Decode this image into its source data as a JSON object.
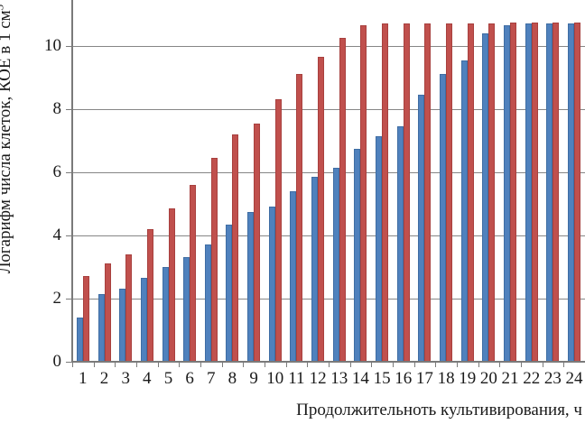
{
  "figure": {
    "ylabel_main": "Логарифм числа клеток, КОЕ в 1 см",
    "ylabel_sup": "3",
    "xlabel": "Продолжительноть культивирования, ч"
  },
  "chart_data": {
    "type": "bar",
    "title": "",
    "xlabel": "Продолжительноть культивирования, ч",
    "ylabel": "Логарифм числа клеток, КОЕ в 1 см³",
    "categories": [
      "1",
      "2",
      "3",
      "4",
      "5",
      "6",
      "7",
      "8",
      "9",
      "10",
      "11",
      "12",
      "13",
      "14",
      "15",
      "16",
      "17",
      "18",
      "19",
      "20",
      "21",
      "22",
      "23",
      "24"
    ],
    "series": [
      {
        "name": "series-blue",
        "color": "#4F81BD",
        "values": [
          1.4,
          2.15,
          2.3,
          2.65,
          3.0,
          3.3,
          3.7,
          4.35,
          4.75,
          4.9,
          5.4,
          5.85,
          6.15,
          6.75,
          7.15,
          7.45,
          8.45,
          9.1,
          9.55,
          10.4,
          10.65,
          10.7,
          10.7,
          10.7
        ]
      },
      {
        "name": "series-red",
        "color": "#C0504D",
        "values": [
          2.7,
          3.1,
          3.4,
          4.2,
          4.85,
          5.6,
          6.45,
          7.2,
          7.55,
          8.3,
          9.1,
          9.65,
          10.25,
          10.65,
          10.7,
          10.7,
          10.7,
          10.7,
          10.7,
          10.7,
          10.75,
          10.75,
          10.75,
          10.75
        ]
      }
    ],
    "ylim": [
      0,
      11.45
    ],
    "yticks": [
      0,
      2,
      4,
      6,
      8,
      10
    ],
    "grid": true,
    "legend": "none",
    "note_top_cropped": "plot area is cropped at top of screenshot"
  },
  "style": {
    "axis_color": "#7a7a7a",
    "grid_color": "#868686",
    "text_color": "#1a1a1a",
    "background": "#ffffff"
  }
}
